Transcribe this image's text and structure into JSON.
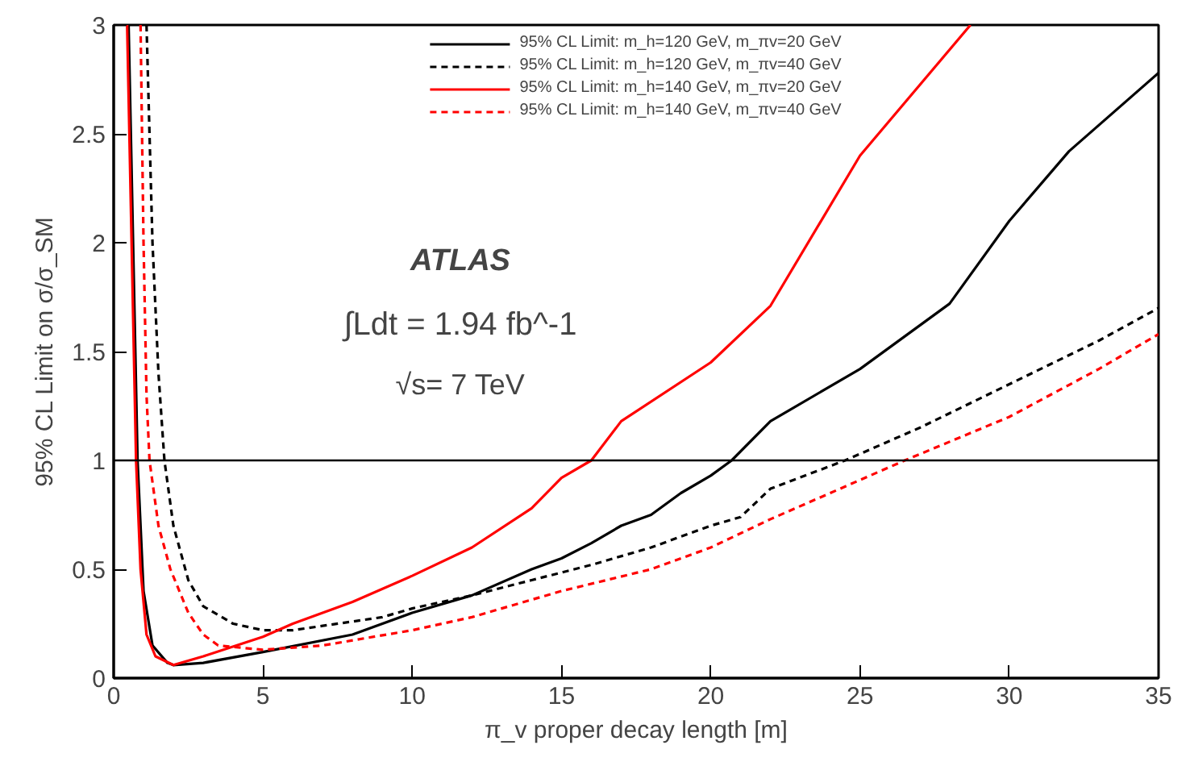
{
  "chart_data": {
    "type": "line",
    "xlabel": "π_v proper decay length [m]",
    "ylabel": "95% CL Limit on σ/σ_SM",
    "xlim": [
      0,
      35
    ],
    "ylim": [
      0,
      3
    ],
    "xticks": [
      0,
      5,
      10,
      15,
      20,
      25,
      30,
      35
    ],
    "yticks": [
      0,
      0.5,
      1,
      1.5,
      2,
      2.5,
      3
    ],
    "grid": false,
    "legend": "top",
    "marker": "none",
    "annotations": [
      "ATLAS",
      "∫Ldt = 1.94 fb^-1",
      "√s= 7 TeV"
    ],
    "ref_lines": [
      {
        "axis": "y",
        "value": 1,
        "label": null,
        "color": "#000000",
        "line_style": "solid"
      }
    ],
    "series": [
      {
        "name": "95% CL Limit: m_h=120 GeV, m_πv=20 GeV",
        "color": "#000000",
        "line_style": "solid",
        "x": [
          0.5,
          0.65,
          0.8,
          1,
          1.3,
          1.8,
          2,
          3,
          5,
          8,
          10,
          12,
          14,
          15,
          16,
          17,
          18,
          19,
          20,
          20.7,
          22,
          25,
          28,
          30,
          32,
          35
        ],
        "values": [
          3,
          2,
          1,
          0.4,
          0.15,
          0.07,
          0.06,
          0.07,
          0.12,
          0.2,
          0.3,
          0.38,
          0.5,
          0.55,
          0.62,
          0.7,
          0.75,
          0.85,
          0.93,
          1.0,
          1.18,
          1.42,
          1.72,
          2.1,
          2.42,
          2.78
        ]
      },
      {
        "name": "95% CL Limit: m_h=120 GeV, m_πv=40 GeV",
        "color": "#000000",
        "line_style": "dashed",
        "x": [
          1.1,
          1.3,
          1.5,
          1.7,
          2,
          2.5,
          3,
          4,
          5,
          6,
          7,
          9,
          10,
          12,
          14,
          16,
          18,
          20,
          21,
          22,
          24.5,
          27,
          30,
          33,
          35
        ],
        "values": [
          3,
          2,
          1.4,
          1,
          0.7,
          0.45,
          0.33,
          0.25,
          0.22,
          0.22,
          0.24,
          0.28,
          0.32,
          0.38,
          0.45,
          0.52,
          0.6,
          0.7,
          0.74,
          0.87,
          1.0,
          1.15,
          1.35,
          1.55,
          1.7
        ]
      },
      {
        "name": "95% CL Limit: m_h=140 GeV, m_πv=20 GeV",
        "color": "#ff0000",
        "line_style": "solid",
        "x": [
          0.45,
          0.6,
          0.75,
          0.9,
          1.1,
          1.4,
          2,
          3,
          5,
          6,
          8,
          10,
          12,
          14,
          15,
          16,
          17,
          20,
          22,
          25,
          28.7
        ],
        "values": [
          3,
          2,
          1,
          0.5,
          0.2,
          0.1,
          0.06,
          0.1,
          0.19,
          0.25,
          0.35,
          0.47,
          0.6,
          0.78,
          0.92,
          1.0,
          1.18,
          1.45,
          1.71,
          2.4,
          3
        ]
      },
      {
        "name": "95% CL Limit: m_h=140 GeV, m_πv=40 GeV",
        "color": "#ff0000",
        "line_style": "dashed",
        "x": [
          0.9,
          1.0,
          1.1,
          1.2,
          1.5,
          1.9,
          2.5,
          3,
          3.5,
          5,
          7,
          10,
          12,
          15,
          18,
          20,
          22,
          24,
          26.5,
          30,
          33,
          35
        ],
        "values": [
          3,
          2,
          1.3,
          1,
          0.7,
          0.5,
          0.3,
          0.2,
          0.15,
          0.13,
          0.15,
          0.22,
          0.28,
          0.4,
          0.5,
          0.6,
          0.73,
          0.85,
          1.0,
          1.2,
          1.42,
          1.58
        ]
      }
    ]
  }
}
